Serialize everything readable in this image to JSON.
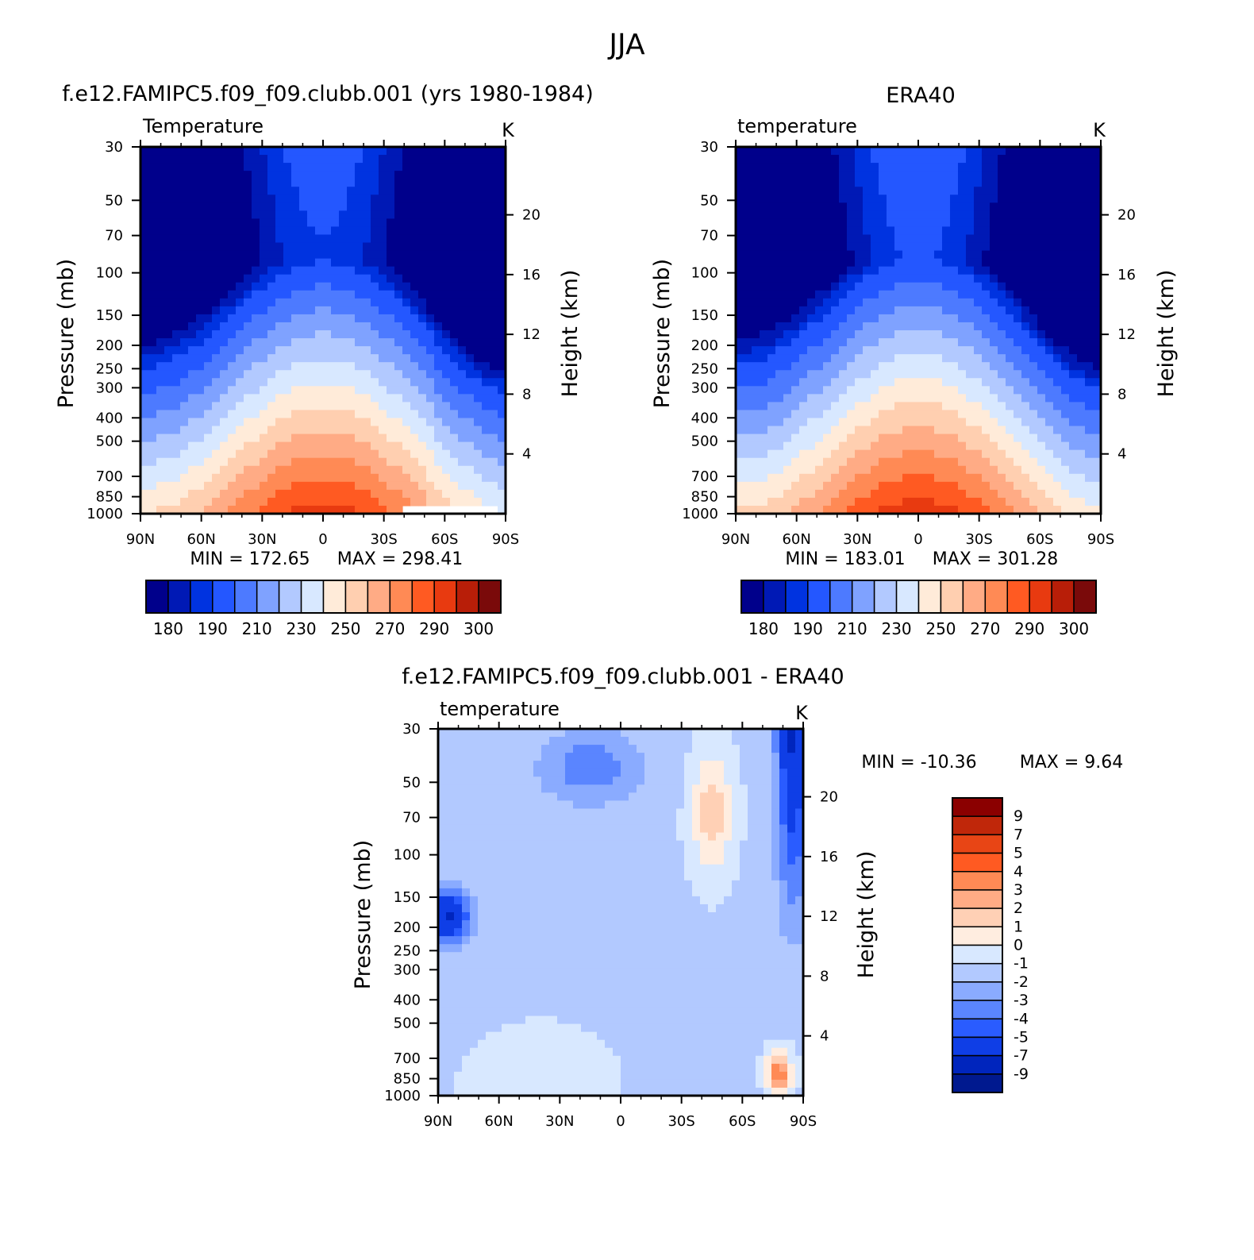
{
  "page_title": "JJA",
  "chart_data": [
    {
      "type": "heatmap",
      "id": "model",
      "title": "f.e12.FAMIPC5.f09_f09.clubb.001 (yrs 1980-1984)",
      "variable_label": "Temperature",
      "units": "K",
      "ylabel": "Pressure (mb)",
      "ylabel_right": "Height (km)",
      "x_ticks": [
        "90N",
        "60N",
        "30N",
        "0",
        "30S",
        "60S",
        "90S"
      ],
      "x_values": [
        90,
        60,
        30,
        0,
        -30,
        -60,
        -90
      ],
      "y_ticks": [
        "30",
        "50",
        "70",
        "100",
        "150",
        "200",
        "250",
        "300",
        "400",
        "500",
        "700",
        "850",
        "1000"
      ],
      "y_values": [
        30,
        50,
        70,
        100,
        150,
        200,
        250,
        300,
        400,
        500,
        700,
        850,
        1000
      ],
      "height_ticks": [
        "20",
        "16",
        "12",
        "8",
        "4"
      ],
      "height_values": [
        20,
        16,
        12,
        8,
        4
      ],
      "min_text": "MIN = 172.65",
      "max_text": "MAX = 298.41",
      "min": 172.65,
      "max": 298.41
    },
    {
      "type": "heatmap",
      "id": "obs",
      "title": "ERA40",
      "variable_label": "temperature",
      "units": "K",
      "ylabel": "Pressure (mb)",
      "ylabel_right": "Height (km)",
      "x_ticks": [
        "90N",
        "60N",
        "30N",
        "0",
        "30S",
        "60S",
        "90S"
      ],
      "x_values": [
        90,
        60,
        30,
        0,
        -30,
        -60,
        -90
      ],
      "y_ticks": [
        "30",
        "50",
        "70",
        "100",
        "150",
        "200",
        "250",
        "300",
        "400",
        "500",
        "700",
        "850",
        "1000"
      ],
      "y_values": [
        30,
        50,
        70,
        100,
        150,
        200,
        250,
        300,
        400,
        500,
        700,
        850,
        1000
      ],
      "height_ticks": [
        "20",
        "16",
        "12",
        "8",
        "4"
      ],
      "height_values": [
        20,
        16,
        12,
        8,
        4
      ],
      "min_text": "MIN = 183.01",
      "max_text": "MAX = 301.28",
      "min": 183.01,
      "max": 301.28
    },
    {
      "type": "heatmap",
      "id": "diff",
      "title": "f.e12.FAMIPC5.f09_f09.clubb.001 - ERA40",
      "variable_label": "temperature",
      "units": "K",
      "ylabel": "Pressure (mb)",
      "ylabel_right": "Height (km)",
      "x_ticks": [
        "90N",
        "60N",
        "30N",
        "0",
        "30S",
        "60S",
        "90S"
      ],
      "x_values": [
        90,
        60,
        30,
        0,
        -30,
        -60,
        -90
      ],
      "y_ticks": [
        "30",
        "50",
        "70",
        "100",
        "150",
        "200",
        "250",
        "300",
        "400",
        "500",
        "700",
        "850",
        "1000"
      ],
      "y_values": [
        30,
        50,
        70,
        100,
        150,
        200,
        250,
        300,
        400,
        500,
        700,
        850,
        1000
      ],
      "height_ticks": [
        "20",
        "16",
        "12",
        "8",
        "4"
      ],
      "height_values": [
        20,
        16,
        12,
        8,
        4
      ],
      "min_text": "MIN = -10.36",
      "max_text": "MAX =    9.64",
      "min": -10.36,
      "max": 9.64
    }
  ],
  "colorbar_temp": {
    "colors": [
      "#00008b",
      "#0019b5",
      "#0033e0",
      "#2457ff",
      "#4d7aff",
      "#7fa2ff",
      "#b2c9ff",
      "#d8e8ff",
      "#ffebd9",
      "#ffcfb0",
      "#ffab85",
      "#ff8a55",
      "#ff5a22",
      "#e83a10",
      "#b81e08",
      "#7a0a0a"
    ],
    "labels": [
      "180",
      "190",
      "210",
      "230",
      "250",
      "270",
      "290",
      "300"
    ]
  },
  "colorbar_diff": {
    "colors": [
      "#8b0000",
      "#c0270a",
      "#e84515",
      "#ff5a22",
      "#ff8a55",
      "#ffab85",
      "#ffd0b5",
      "#ffede0",
      "#d8e8ff",
      "#b2c9ff",
      "#8aabff",
      "#5a85ff",
      "#2a5cff",
      "#0f3ee6",
      "#0025bd",
      "#00198f"
    ],
    "labels": [
      "9",
      "7",
      "5",
      "4",
      "3",
      "2",
      "1",
      "0",
      "-1",
      "-2",
      "-3",
      "-4",
      "-5",
      "-7",
      "-9"
    ]
  },
  "colors": {
    "stroke": "#000000",
    "background": "#ffffff"
  }
}
